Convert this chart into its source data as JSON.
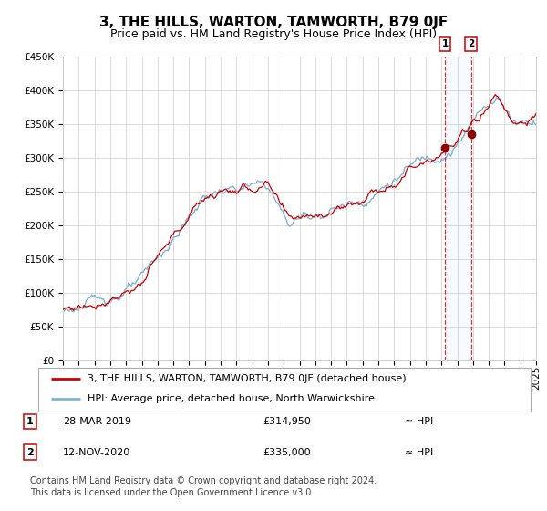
{
  "title": "3, THE HILLS, WARTON, TAMWORTH, B79 0JF",
  "subtitle": "Price paid vs. HM Land Registry's House Price Index (HPI)",
  "ylim": [
    0,
    450000
  ],
  "yticks": [
    0,
    50000,
    100000,
    150000,
    200000,
    250000,
    300000,
    350000,
    400000,
    450000
  ],
  "xmin": 1995,
  "xmax": 2025,
  "line_color": "#cc0000",
  "hpi_color": "#7fb3d3",
  "background_color": "#ffffff",
  "plot_bg_color": "#ffffff",
  "grid_color": "#cccccc",
  "sale1_date": 2019.23,
  "sale1_price": 314950,
  "sale1_label": "1",
  "sale2_date": 2020.87,
  "sale2_price": 335000,
  "sale2_label": "2",
  "legend_entries": [
    "3, THE HILLS, WARTON, TAMWORTH, B79 0JF (detached house)",
    "HPI: Average price, detached house, North Warwickshire"
  ],
  "table_rows": [
    [
      "1",
      "28-MAR-2019",
      "£314,950",
      "≈ HPI"
    ],
    [
      "2",
      "12-NOV-2020",
      "£335,000",
      "≈ HPI"
    ]
  ],
  "footer": "Contains HM Land Registry data © Crown copyright and database right 2024.\nThis data is licensed under the Open Government Licence v3.0.",
  "title_fontsize": 11,
  "subtitle_fontsize": 9,
  "tick_fontsize": 7.5,
  "legend_fontsize": 8,
  "footer_fontsize": 7
}
